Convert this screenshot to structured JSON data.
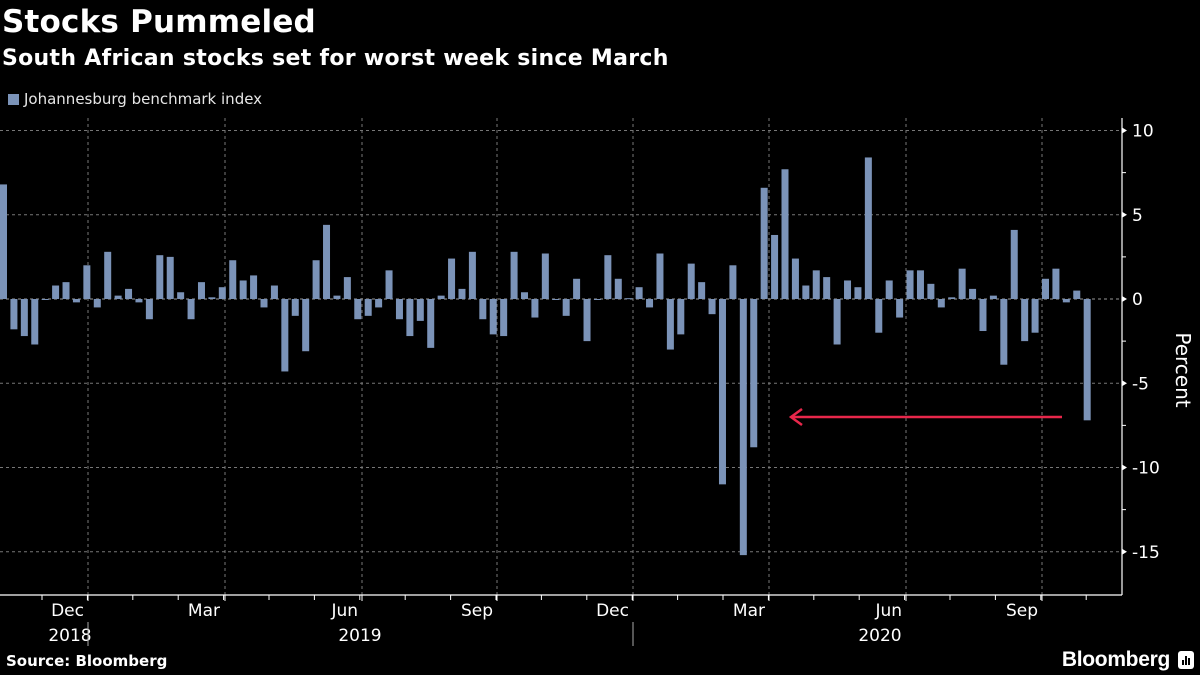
{
  "chart_data": {
    "type": "bar",
    "title": "Stocks Pummeled",
    "subtitle": "South African stocks set for worst week since March",
    "ylabel": "Percent",
    "xlabel": "",
    "ylim": [
      -17,
      11
    ],
    "yticks": [
      10,
      5,
      0,
      -5,
      -10,
      -15
    ],
    "grid": true,
    "legend_position": "top-left",
    "bar_color": "#7b93b8",
    "series": [
      {
        "name": "Johannesburg benchmark index",
        "values": [
          6.8,
          -1.8,
          -2.2,
          -2.7,
          -0.05,
          0.8,
          1.0,
          -0.2,
          2.0,
          -0.5,
          2.8,
          0.2,
          0.6,
          -0.2,
          -1.2,
          2.6,
          2.5,
          0.4,
          -1.2,
          1.0,
          0.1,
          0.7,
          2.3,
          1.1,
          1.4,
          -0.5,
          0.8,
          -4.3,
          -1.0,
          -3.1,
          2.3,
          4.4,
          0.2,
          1.3,
          -1.2,
          -1.0,
          -0.5,
          1.7,
          -1.2,
          -2.2,
          -1.3,
          -2.9,
          0.2,
          2.4,
          0.6,
          2.8,
          -1.2,
          -2.1,
          -2.2,
          2.8,
          0.4,
          -1.1,
          2.7,
          0.0,
          -1.0,
          1.2,
          -2.5,
          0.0,
          2.6,
          1.2,
          0.05,
          0.7,
          -0.5,
          2.7,
          -3.0,
          -2.1,
          2.1,
          1.0,
          -0.9,
          -11.0,
          2.0,
          -15.2,
          -8.8,
          6.6,
          3.8,
          7.7,
          2.4,
          0.8,
          1.7,
          1.3,
          -2.7,
          1.1,
          0.7,
          8.4,
          -2.0,
          1.1,
          -1.1,
          1.7,
          1.7,
          0.9,
          -0.5,
          0.1,
          1.8,
          0.6,
          -1.9,
          0.2,
          -3.9,
          4.1,
          -2.5,
          -2.0,
          1.2,
          1.8,
          -0.2,
          0.5,
          -7.2
        ]
      }
    ],
    "x_tick_labels": [
      "Dec",
      "Mar",
      "Jun",
      "Sep",
      "Dec",
      "Mar",
      "Jun",
      "Sep"
    ],
    "x_year_labels": [
      "2018",
      "2019",
      "2020"
    ],
    "annotation": "red arrow pointing left from latest week toward March 2020 lows",
    "annotation_color": "#e8274b"
  },
  "legend": {
    "label": "Johannesburg benchmark index",
    "color": "#7b93b8"
  },
  "footer": {
    "source": "Source: Bloomberg",
    "brand": "Bloomberg"
  }
}
